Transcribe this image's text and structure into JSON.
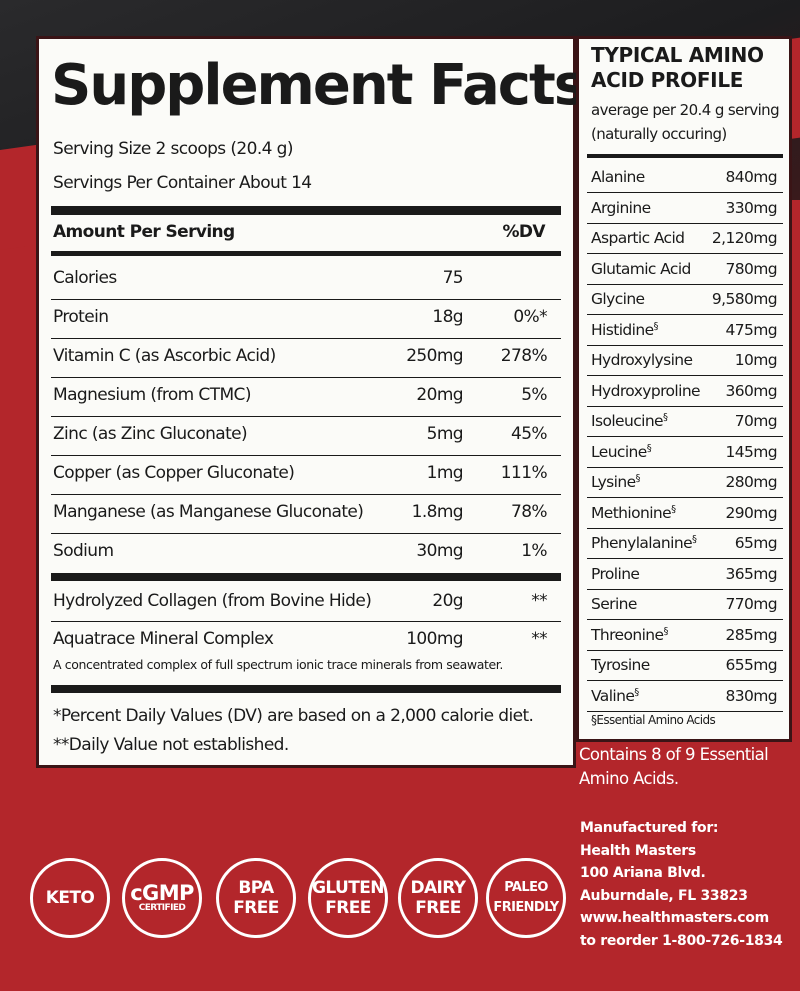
{
  "supplement_facts": {
    "title": "Supplement Facts",
    "serving_size": "Serving Size 2 scoops (20.4 g)",
    "servings_per_container": "Servings Per Container About 14",
    "column_amount": "Amount Per Serving",
    "column_dv": "%DV",
    "rows": [
      {
        "name": "Calories",
        "amount": "75"
      },
      {
        "name": "Protein",
        "amount": "18g",
        "dv": "0%*"
      },
      {
        "name": "Vitamin C (as Ascorbic Acid)",
        "amount": "250mg",
        "dv": "278%"
      },
      {
        "name": "Magnesium (from CTMC)",
        "amount": "20mg",
        "dv": "5%"
      },
      {
        "name": "Zinc (as Zinc Gluconate)",
        "amount": "5mg",
        "dv": "45%"
      },
      {
        "name": "Copper (as Copper Gluconate)",
        "amount": "1mg",
        "dv": "111%"
      },
      {
        "name": "Manganese (as Manganese Gluconate)",
        "amount": "1.8mg",
        "dv": "78%"
      },
      {
        "name": "Sodium",
        "amount": "30mg",
        "dv": "1%"
      }
    ],
    "other_rows": [
      {
        "name": "Hydrolyzed Collagen (from Bovine Hide)",
        "amount": "20g",
        "dv": "**"
      },
      {
        "name": "Aquatrace Mineral Complex",
        "amount": "100mg",
        "dv": "**"
      }
    ],
    "aquatrace_note": "A concentrated complex of full spectrum ionic trace minerals from seawater.",
    "footnotes": [
      "*Percent Daily Values (DV) are based on a 2,000 calorie diet.",
      "**Daily Value not established."
    ]
  },
  "amino_profile": {
    "title_lines": [
      "TYPICAL AMINO",
      "ACID PROFILE"
    ],
    "subtitle_lines": [
      "average per 20.4 g serving",
      "(naturally occuring)"
    ],
    "rows": [
      {
        "name": "Alanine",
        "amount": "840mg"
      },
      {
        "name": "Arginine",
        "amount": "330mg"
      },
      {
        "name": "Aspartic Acid",
        "amount": "2,120mg"
      },
      {
        "name": "Glutamic Acid",
        "amount": "780mg"
      },
      {
        "name": "Glycine",
        "amount": "9,580mg"
      },
      {
        "name": "Histidine",
        "mark": "§",
        "amount": "475mg"
      },
      {
        "name": "Hydroxylysine",
        "amount": "10mg"
      },
      {
        "name": "Hydroxyproline",
        "amount": "360mg"
      },
      {
        "name": "Isoleucine",
        "mark": "§",
        "amount": "70mg"
      },
      {
        "name": "Leucine",
        "mark": "§",
        "amount": "145mg"
      },
      {
        "name": "Lysine",
        "mark": "§",
        "amount": "280mg"
      },
      {
        "name": "Methionine",
        "mark": "§",
        "amount": "290mg"
      },
      {
        "name": "Phenylalanine",
        "mark": "§",
        "amount": "65mg"
      },
      {
        "name": "Proline",
        "amount": "365mg"
      },
      {
        "name": "Serine",
        "amount": "770mg"
      },
      {
        "name": "Threonine",
        "mark": "§",
        "amount": "285mg"
      },
      {
        "name": "Tyrosine",
        "amount": "655mg"
      },
      {
        "name": "Valine",
        "mark": "§",
        "amount": "830mg"
      }
    ],
    "footnote": "§Essential Amino Acids"
  },
  "contains_note": [
    "Contains 8 of 9 Essential",
    "Amino Acids."
  ],
  "manufacturer": [
    "Manufactured for:",
    "Health Masters",
    "100 Ariana Blvd.",
    "Auburndale, FL 33823",
    "www.healthmasters.com",
    "to reorder 1-800-726-1834"
  ],
  "badges": [
    [
      "KETO"
    ],
    [
      "cGMP",
      "CERTIFIED"
    ],
    [
      "BPA",
      "FREE"
    ],
    [
      "GLUTEN",
      "FREE"
    ],
    [
      "DAIRY",
      "FREE"
    ],
    [
      "PALEO",
      "FRIENDLY"
    ]
  ]
}
